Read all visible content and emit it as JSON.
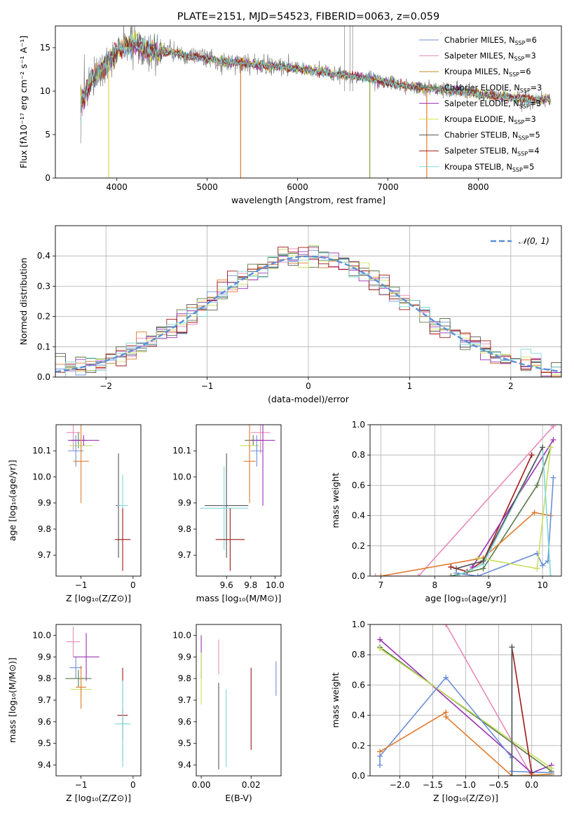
{
  "chart_data": [
    {
      "type": "line",
      "title": "PLATE=2151, MJD=54523, FIBERID=0063, z=0.059",
      "xlabel": "wavelength [Angstrom, rest frame]",
      "ylabel": "Flux [fλ10⁻¹⁷ erg cm⁻² s⁻¹ A⁻¹]",
      "xlim": [
        3320,
        8920
      ],
      "ylim": [
        0,
        17.5
      ],
      "xticks": [
        4000,
        5000,
        6000,
        7000,
        8000
      ],
      "yticks": [
        0,
        5,
        10,
        15
      ],
      "legend": "top-right",
      "series": [
        {
          "name": "Chabrier MILES, N_SSP=6",
          "color": "#6b8fd6"
        },
        {
          "name": "Salpeter MILES, N_SSP=3",
          "color": "#e88ab9"
        },
        {
          "name": "Kroupa MILES, N_SSP=6",
          "color": "#c98a2a"
        },
        {
          "name": "Chabrier ELODIE, N_SSP=3",
          "color": "#5a7a4a"
        },
        {
          "name": "Salpeter ELODIE, N_SSP=3",
          "color": "#9b30b5"
        },
        {
          "name": "Kroupa ELODIE, N_SSP=3",
          "color": "#d8e040"
        },
        {
          "name": "Chabrier STELIB, N_SSP=5",
          "color": "#555555"
        },
        {
          "name": "Salpeter STELIB, N_SSP=4",
          "color": "#a01818"
        },
        {
          "name": "Kroupa STELIB, N_SSP=5",
          "color": "#7fd8d8"
        }
      ],
      "data_color": "#808080",
      "model_envelope": {
        "x": [
          3600,
          3650,
          3700,
          3800,
          3900,
          3950,
          4000,
          4100,
          4200,
          4300,
          4400,
          4500,
          4600,
          4800,
          4900,
          5000,
          5200,
          5400,
          5600,
          5800,
          6000,
          6200,
          6400,
          6600,
          6800,
          7000,
          7200,
          7400,
          7600,
          7800,
          8000,
          8200,
          8400,
          8600,
          8800
        ],
        "y": [
          8.5,
          9.5,
          11.0,
          12.3,
          13.2,
          14.0,
          14.6,
          15.2,
          15.3,
          14.8,
          14.6,
          14.5,
          14.5,
          14.0,
          13.9,
          13.7,
          13.4,
          13.2,
          13.0,
          12.8,
          12.6,
          12.3,
          12.0,
          11.7,
          11.4,
          11.0,
          10.6,
          10.4,
          10.2,
          10.0,
          9.7,
          9.4,
          9.2,
          9.0,
          9.0
        ]
      },
      "absorption_dips": [
        {
          "x": 3910,
          "y": 0
        },
        {
          "x": 5370,
          "y": 0
        },
        {
          "x": 6800,
          "y": 0
        },
        {
          "x": 7430,
          "y": 0
        }
      ],
      "grid": false
    },
    {
      "type": "line",
      "xlabel": "(data-model)/error",
      "ylabel": "Normed distribution",
      "xlim": [
        -2.5,
        2.5
      ],
      "ylim": [
        0,
        0.5
      ],
      "xticks": [
        -2,
        -1,
        0,
        1,
        2
      ],
      "yticks": [
        0.0,
        0.1,
        0.2,
        0.3,
        0.4
      ],
      "legend": "top-right",
      "reference_curve": {
        "name": "N(0, 1)",
        "color": "#5b8fd6",
        "style": "dashed"
      },
      "histogram_bins": {
        "start": -2.5,
        "width": 0.1,
        "count": 50
      },
      "histogram_colors": [
        "#6b8fd6",
        "#e88ab9",
        "#e07b2c",
        "#5a7a4a",
        "#9b30b5",
        "#c8e060",
        "#555555",
        "#a01818",
        "#7fd8d8"
      ],
      "grid": true
    },
    {
      "type": "scatter",
      "xlabel": "Z [log₁₀(Z/Z⊙)]",
      "ylabel": "age  [log₁₀(age/yr)]",
      "xlim": [
        -1.48,
        0.15
      ],
      "ylim": [
        9.62,
        10.2
      ],
      "xticks": [
        -1,
        0
      ],
      "yticks": [
        9.7,
        9.8,
        9.9,
        10.0,
        10.1
      ],
      "points": [
        {
          "x": -1.15,
          "y": 10.17,
          "xerr": 0.13,
          "yerr": 0.07,
          "color": "#e88ab9"
        },
        {
          "x": -1.05,
          "y": 10.14,
          "xerr": 0.15,
          "yerr": 0.03,
          "color": "#5a7a4a"
        },
        {
          "x": -1.0,
          "y": 10.12,
          "xerr": 0.22,
          "yerr": 0.03,
          "color": "#c8e060"
        },
        {
          "x": -1.1,
          "y": 10.1,
          "xerr": 0.15,
          "yerr": 0.06,
          "color": "#6b8fd6"
        },
        {
          "x": -0.95,
          "y": 10.14,
          "xerr": 0.3,
          "yerr": 0.02,
          "color": "#9b30b5"
        },
        {
          "x": -1.0,
          "y": 10.06,
          "xerr": 0.15,
          "yerr": 0.16,
          "color": "#e07b2c"
        },
        {
          "x": -0.28,
          "y": 9.89,
          "xerr": 0.05,
          "yerr": 0.2,
          "color": "#555555"
        },
        {
          "x": -0.2,
          "y": 9.89,
          "xerr": 0.1,
          "yerr": 0.12,
          "color": "#7fd8d8"
        },
        {
          "x": -0.2,
          "y": 9.76,
          "xerr": 0.15,
          "yerr": 0.12,
          "color": "#a01818"
        }
      ],
      "grid": false
    },
    {
      "type": "scatter",
      "xlabel": "mass [log₁₀(M/M⊙)]",
      "ylabel": "",
      "xlim": [
        9.35,
        10.05
      ],
      "ylim": [
        9.62,
        10.2
      ],
      "xticks": [
        9.6,
        9.8,
        10.0
      ],
      "yticks": [
        9.7,
        9.8,
        9.9,
        10.0,
        10.1
      ],
      "points": [
        {
          "x": 9.88,
          "y": 10.17,
          "xerr": 0.08,
          "yerr": 0.08,
          "color": "#e88ab9"
        },
        {
          "x": 9.82,
          "y": 10.14,
          "xerr": 0.07,
          "yerr": 0.02,
          "color": "#5a7a4a"
        },
        {
          "x": 9.79,
          "y": 10.12,
          "xerr": 0.08,
          "yerr": 0.05,
          "color": "#c8e060"
        },
        {
          "x": 9.85,
          "y": 10.1,
          "xerr": 0.05,
          "yerr": 0.06,
          "color": "#6b8fd6"
        },
        {
          "x": 9.9,
          "y": 10.14,
          "xerr": 0.1,
          "yerr": 0.25,
          "color": "#9b30b5"
        },
        {
          "x": 9.79,
          "y": 10.06,
          "xerr": 0.05,
          "yerr": 0.16,
          "color": "#e07b2c"
        },
        {
          "x": 9.6,
          "y": 9.89,
          "xerr": 0.18,
          "yerr": 0.2,
          "color": "#555555"
        },
        {
          "x": 9.58,
          "y": 9.88,
          "xerr": 0.2,
          "yerr": 0.16,
          "color": "#7fd8d8"
        },
        {
          "x": 9.63,
          "y": 9.76,
          "xerr": 0.12,
          "yerr": 0.12,
          "color": "#a01818"
        }
      ],
      "grid": false
    },
    {
      "type": "line",
      "xlabel": "age  [log₁₀(age/yr)]",
      "ylabel": "mass weight",
      "xlim": [
        6.8,
        10.35
      ],
      "ylim": [
        0,
        1.0
      ],
      "xticks": [
        7,
        8,
        9,
        10
      ],
      "yticks": [
        0.0,
        0.2,
        0.4,
        0.6,
        0.8,
        1.0
      ],
      "series": [
        {
          "color": "#e88ab9",
          "x": [
            6.9,
            7.7,
            10.2
          ],
          "y": [
            0.0,
            0.0,
            0.99
          ]
        },
        {
          "color": "#a01818",
          "x": [
            8.3,
            8.6,
            8.9,
            9.8
          ],
          "y": [
            0.06,
            0.03,
            0.1,
            0.8
          ]
        },
        {
          "color": "#5a7a4a",
          "x": [
            8.3,
            8.9,
            9.9,
            10.15
          ],
          "y": [
            0.0,
            0.05,
            0.6,
            0.85
          ]
        },
        {
          "color": "#9b30b5",
          "x": [
            8.7,
            10.2
          ],
          "y": [
            0.06,
            0.9
          ]
        },
        {
          "color": "#e07b2c",
          "x": [
            7.0,
            8.9,
            9.85,
            10.15
          ],
          "y": [
            0.0,
            0.12,
            0.42,
            0.4
          ]
        },
        {
          "color": "#6b8fd6",
          "x": [
            8.4,
            8.8,
            9.9,
            10.0,
            10.1,
            10.2
          ],
          "y": [
            0.02,
            0.0,
            0.15,
            0.07,
            0.1,
            0.65
          ]
        },
        {
          "color": "#c8e060",
          "x": [
            8.8,
            9.9,
            10.15
          ],
          "y": [
            0.12,
            0.05,
            0.85
          ]
        },
        {
          "color": "#7fd8d8",
          "x": [
            8.4,
            8.9,
            10.0,
            10.15
          ],
          "y": [
            0.0,
            0.08,
            0.85,
            0.0
          ]
        },
        {
          "color": "#555555",
          "x": [
            8.4,
            8.9,
            10.0
          ],
          "y": [
            0.05,
            0.1,
            0.85
          ]
        }
      ],
      "grid": true
    },
    {
      "type": "scatter",
      "xlabel": "Z [log₁₀(Z/Z⊙)]",
      "ylabel": "mass [log₁₀(M/M⊙)]",
      "xlim": [
        -1.48,
        0.15
      ],
      "ylim": [
        9.35,
        10.05
      ],
      "xticks": [
        -1,
        0
      ],
      "yticks": [
        9.4,
        9.5,
        9.6,
        9.7,
        9.8,
        9.9,
        10.0
      ],
      "points": [
        {
          "x": -1.15,
          "y": 9.97,
          "xerr": 0.13,
          "yerr": 0.07,
          "color": "#e88ab9"
        },
        {
          "x": -0.9,
          "y": 9.9,
          "xerr": 0.25,
          "yerr": 0.11,
          "color": "#9b30b5"
        },
        {
          "x": -1.1,
          "y": 9.85,
          "xerr": 0.12,
          "yerr": 0.05,
          "color": "#6b8fd6"
        },
        {
          "x": -1.05,
          "y": 9.8,
          "xerr": 0.25,
          "yerr": 0.04,
          "color": "#5a7a4a"
        },
        {
          "x": -1.0,
          "y": 9.75,
          "xerr": 0.2,
          "yerr": 0.05,
          "color": "#c8e060"
        },
        {
          "x": -1.0,
          "y": 9.76,
          "xerr": 0.1,
          "yerr": 0.1,
          "color": "#e07b2c"
        },
        {
          "x": -0.2,
          "y": 9.63,
          "xerr": 0.1,
          "yerr": 0.22,
          "color": "#a01818"
        },
        {
          "x": -0.2,
          "y": 9.59,
          "xerr": 0.1,
          "yerr": 0.08,
          "color": "#555555"
        },
        {
          "x": -0.2,
          "y": 9.59,
          "xerr": 0.15,
          "yerr": 0.2,
          "color": "#7fd8d8"
        }
      ],
      "grid": false
    },
    {
      "type": "scatter",
      "xlabel": "E(B-V)",
      "ylabel": "",
      "xlim": [
        -0.002,
        0.032
      ],
      "ylim": [
        9.35,
        10.05
      ],
      "xticks": [
        0.0,
        0.02
      ],
      "yticks": [
        9.4,
        9.5,
        9.6,
        9.7,
        9.8,
        9.9,
        10.0
      ],
      "points": [
        {
          "x": 0.0,
          "y": 9.9,
          "yerr": 0.1,
          "color": "#9b30b5"
        },
        {
          "x": 0.0,
          "y": 9.8,
          "yerr": 0.12,
          "color": "#c8e060"
        },
        {
          "x": 0.007,
          "y": 9.9,
          "yerr": 0.08,
          "color": "#e88ab9"
        },
        {
          "x": 0.007,
          "y": 9.58,
          "yerr": 0.2,
          "color": "#555555"
        },
        {
          "x": 0.01,
          "y": 9.57,
          "yerr": 0.18,
          "color": "#7fd8d8"
        },
        {
          "x": 0.02,
          "y": 9.66,
          "yerr": 0.19,
          "color": "#a01818"
        },
        {
          "x": 0.03,
          "y": 9.8,
          "yerr": 0.08,
          "color": "#6b8fd6"
        }
      ],
      "grid": false
    },
    {
      "type": "line",
      "xlabel": "Z [log₁₀(Z/Z⊙)]",
      "ylabel": "mass weight",
      "xlim": [
        -2.45,
        0.45
      ],
      "ylim": [
        0,
        1.0
      ],
      "xticks": [
        -2.0,
        -1.5,
        -1.0,
        -0.5,
        0.0
      ],
      "yticks": [
        0.0,
        0.2,
        0.4,
        0.6,
        0.8,
        1.0
      ],
      "series": [
        {
          "color": "#e88ab9",
          "x": [
            -1.3,
            0.0
          ],
          "y": [
            1.0,
            0.0
          ]
        },
        {
          "color": "#9b30b5",
          "x": [
            -2.3,
            0.0,
            0.3
          ],
          "y": [
            0.9,
            0.02,
            0.07
          ]
        },
        {
          "color": "#5a7a4a",
          "x": [
            -2.3,
            0.3
          ],
          "y": [
            0.85,
            0.03
          ]
        },
        {
          "color": "#c8e060",
          "x": [
            -2.3,
            0.3
          ],
          "y": [
            0.84,
            0.05
          ]
        },
        {
          "color": "#6b8fd6",
          "x": [
            -2.3,
            -2.3,
            -1.3,
            -0.3,
            -0.3,
            0.3
          ],
          "y": [
            0.07,
            0.13,
            0.65,
            0.12,
            0.03,
            0.02
          ]
        },
        {
          "color": "#e07b2c",
          "x": [
            -2.3,
            -1.3,
            -1.3,
            -0.3,
            0.3
          ],
          "y": [
            0.16,
            0.42,
            0.39,
            0.0,
            0.01
          ]
        },
        {
          "color": "#a01818",
          "x": [
            -0.3,
            0.0
          ],
          "y": [
            0.85,
            0.02
          ]
        },
        {
          "color": "#7fd8d8",
          "x": [
            -0.3,
            -0.3,
            0.3
          ],
          "y": [
            0.85,
            0.0,
            0.0
          ]
        },
        {
          "color": "#555555",
          "x": [
            -0.3,
            -0.3
          ],
          "y": [
            0.85,
            0.0
          ]
        }
      ],
      "grid": true
    }
  ]
}
